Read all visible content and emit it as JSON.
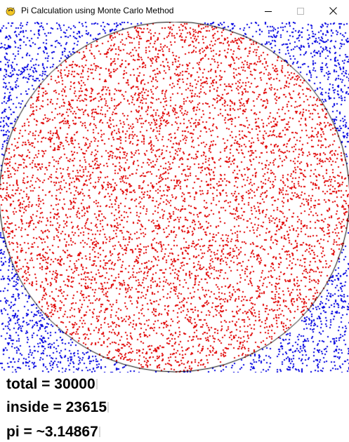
{
  "window": {
    "title": "Pi Calculation using Monte Carlo Method",
    "icons": {
      "app": "pygame-snake-icon",
      "minimize": "minimize-icon",
      "maximize": "maximize-icon",
      "close": "close-icon"
    }
  },
  "simulation": {
    "colors": {
      "inside_points": "#e00000",
      "outside_points": "#0000e0",
      "circle_outline": "#000000",
      "background": "#ffffff"
    },
    "total_label": "total = 30000",
    "inside_label": "inside = 23615",
    "pi_label": "pi = ~3.14867"
  }
}
